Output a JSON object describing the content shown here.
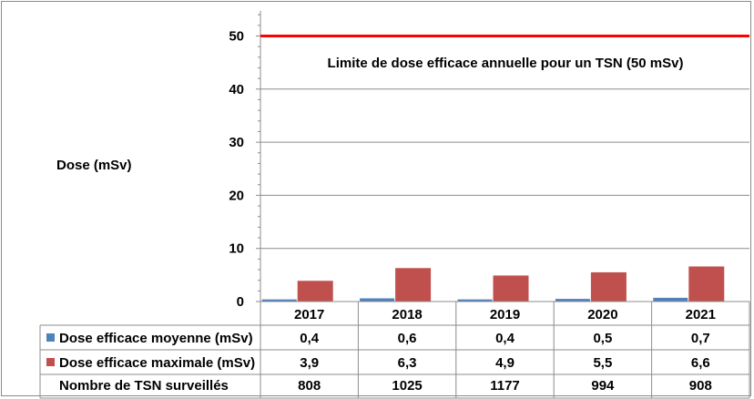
{
  "chart_data": {
    "type": "bar",
    "categories": [
      "2017",
      "2018",
      "2019",
      "2020",
      "2021"
    ],
    "series": [
      {
        "name": "Dose efficace moyenne (mSv)",
        "values": [
          0.4,
          0.6,
          0.4,
          0.5,
          0.7
        ],
        "labels": [
          "0,4",
          "0,6",
          "0,4",
          "0,5",
          "0,7"
        ],
        "color": "#4f81bd"
      },
      {
        "name": "Dose efficace maximale (mSv)",
        "values": [
          3.9,
          6.3,
          4.9,
          5.5,
          6.6
        ],
        "labels": [
          "3,9",
          "6,3",
          "4,9",
          "5,5",
          "6,6"
        ],
        "color": "#c0504d"
      }
    ],
    "extra_row": {
      "name": "Nombre de TSN surveillés",
      "values": [
        "808",
        "1025",
        "1177",
        "994",
        "908"
      ]
    },
    "reference_line": {
      "value": 50,
      "label": "Limite de dose efficace annuelle pour un TSN (50 mSv)",
      "color": "#ff0000"
    },
    "ylabel": "Dose (mSv)",
    "yticks": [
      0,
      10,
      20,
      30,
      40,
      50
    ],
    "ylim": [
      0,
      55
    ],
    "grid": true
  }
}
